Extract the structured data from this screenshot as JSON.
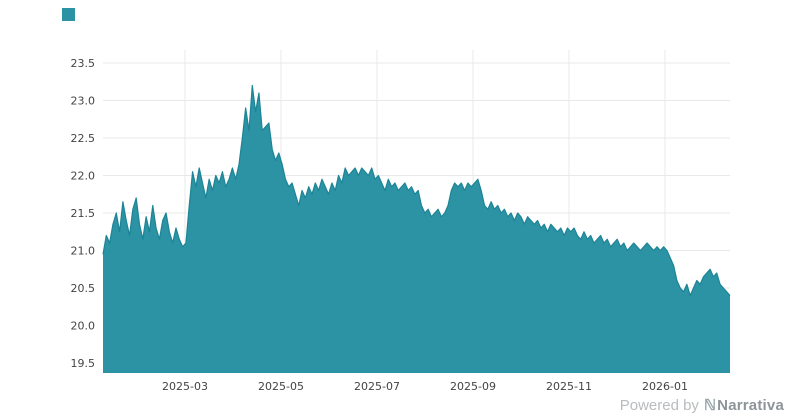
{
  "legend": {
    "swatch_color": "#2b93a4"
  },
  "footer": {
    "powered_by_label": "Powered by",
    "brand_logo_glyph": "ℕ",
    "brand_name": "Narrativa"
  },
  "chart_data": {
    "type": "area",
    "title": "",
    "xlabel": "",
    "ylabel": "",
    "grid": true,
    "legend_position": "top-left",
    "fill_color": "#2b93a4",
    "line_color": "#1d8496",
    "grid_color": "#e8e8e8",
    "x_ticks": [
      "2025-03",
      "2025-05",
      "2025-07",
      "2025-09",
      "2025-11",
      "2026-01"
    ],
    "x_range": [
      "2025-01",
      "2026-02"
    ],
    "y_ticks": [
      19.5,
      20.0,
      20.5,
      21.0,
      21.5,
      22.0,
      22.5,
      23.0,
      23.5
    ],
    "ylim": [
      19.4,
      23.7
    ],
    "values": [
      20.95,
      21.2,
      21.1,
      21.35,
      21.5,
      21.25,
      21.65,
      21.4,
      21.2,
      21.55,
      21.7,
      21.35,
      21.15,
      21.45,
      21.25,
      21.6,
      21.3,
      21.15,
      21.4,
      21.5,
      21.25,
      21.1,
      21.3,
      21.15,
      21.05,
      21.1,
      21.6,
      22.05,
      21.85,
      22.1,
      21.9,
      21.7,
      21.95,
      21.8,
      22.0,
      21.9,
      22.05,
      21.85,
      21.95,
      22.1,
      21.95,
      22.15,
      22.5,
      22.9,
      22.6,
      23.2,
      22.85,
      23.1,
      22.6,
      22.65,
      22.7,
      22.35,
      22.2,
      22.3,
      22.15,
      21.95,
      21.85,
      21.9,
      21.75,
      21.6,
      21.8,
      21.7,
      21.85,
      21.75,
      21.9,
      21.8,
      21.95,
      21.85,
      21.75,
      21.9,
      21.8,
      22.0,
      21.9,
      22.1,
      22.0,
      22.05,
      22.1,
      22.0,
      22.1,
      22.05,
      22.0,
      22.1,
      21.95,
      22.0,
      21.9,
      21.8,
      21.95,
      21.85,
      21.9,
      21.8,
      21.85,
      21.9,
      21.8,
      21.85,
      21.75,
      21.8,
      21.6,
      21.5,
      21.55,
      21.45,
      21.5,
      21.55,
      21.45,
      21.5,
      21.6,
      21.8,
      21.9,
      21.85,
      21.9,
      21.8,
      21.9,
      21.85,
      21.9,
      21.95,
      21.8,
      21.6,
      21.55,
      21.65,
      21.55,
      21.6,
      21.5,
      21.55,
      21.45,
      21.5,
      21.4,
      21.5,
      21.45,
      21.35,
      21.45,
      21.4,
      21.35,
      21.4,
      21.3,
      21.35,
      21.25,
      21.35,
      21.3,
      21.25,
      21.3,
      21.2,
      21.3,
      21.25,
      21.3,
      21.2,
      21.15,
      21.25,
      21.15,
      21.2,
      21.1,
      21.15,
      21.2,
      21.1,
      21.15,
      21.05,
      21.1,
      21.15,
      21.05,
      21.1,
      21.0,
      21.05,
      21.1,
      21.05,
      21.0,
      21.05,
      21.1,
      21.05,
      21.0,
      21.05,
      21.0,
      21.05,
      21.0,
      20.9,
      20.8,
      20.6,
      20.5,
      20.45,
      20.55,
      20.4,
      20.5,
      20.6,
      20.55,
      20.65,
      20.7,
      20.75,
      20.65,
      20.7,
      20.55,
      20.5,
      20.45,
      20.4
    ]
  }
}
